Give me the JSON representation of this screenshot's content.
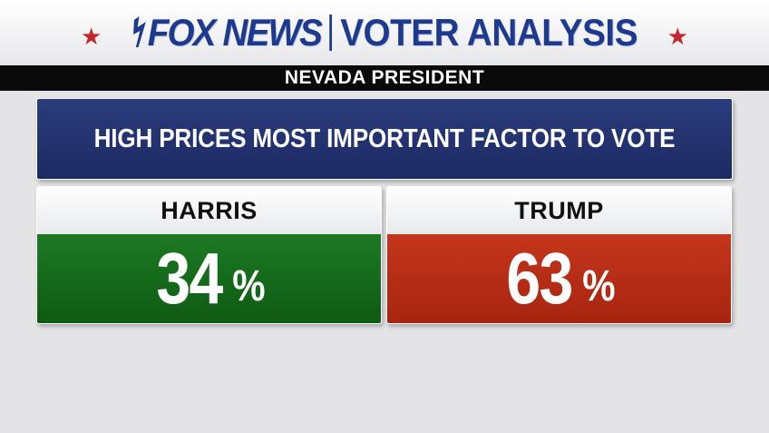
{
  "header": {
    "network": "FOX NEWS",
    "section": "VOTER ANALYSIS",
    "star_color": "#c0282e",
    "brand_color": "#1d3a8f"
  },
  "race": "NEVADA PRESIDENT",
  "question": "HIGH PRICES MOST IMPORTANT FACTOR TO VOTE",
  "candidates": [
    {
      "name": "HARRIS",
      "value": "34",
      "unit": "%",
      "color": "#1c7a22"
    },
    {
      "name": "TRUMP",
      "value": "63",
      "unit": "%",
      "color": "#c4361c"
    }
  ]
}
